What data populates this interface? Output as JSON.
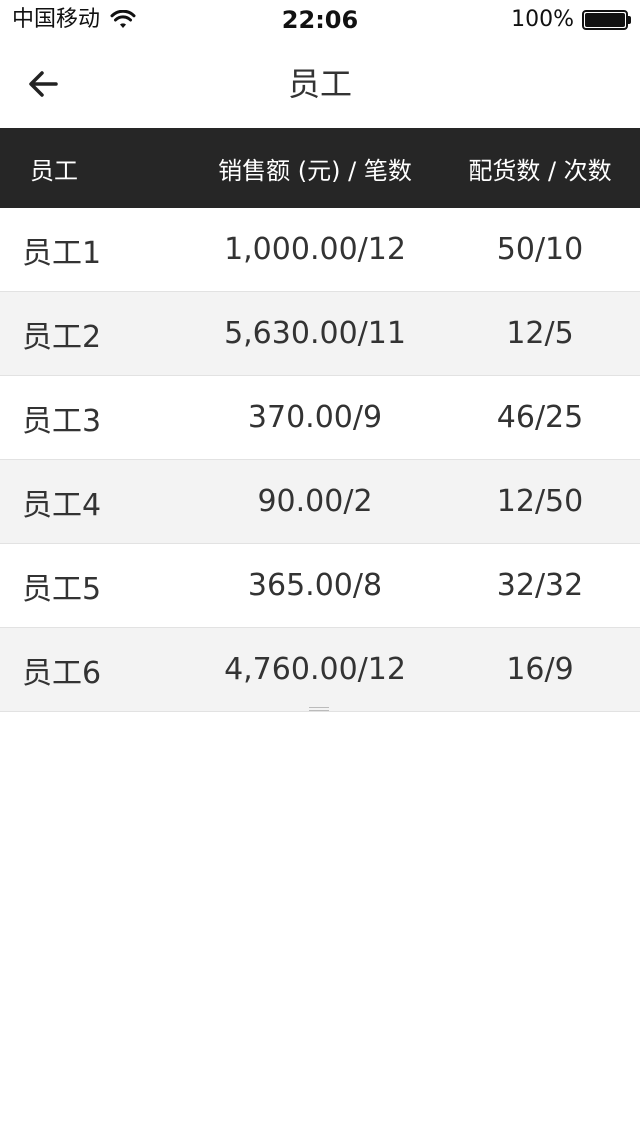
{
  "status_bar": {
    "carrier": "中国移动",
    "time": "22:06",
    "battery": "100%",
    "battery_level": 1.0
  },
  "nav": {
    "title": "员工",
    "back_icon": "arrow-left-icon"
  },
  "table": {
    "headers": {
      "employee": "员工",
      "sales": "销售额 (元) / 笔数",
      "delivery": "配货数 / 次数"
    },
    "rows": [
      {
        "name": "员工1",
        "sales": "1,000.00/12",
        "delivery": "50/10"
      },
      {
        "name": "员工2",
        "sales": "5,630.00/11",
        "delivery": "12/5"
      },
      {
        "name": "员工3",
        "sales": "370.00/9",
        "delivery": "46/25"
      },
      {
        "name": "员工4",
        "sales": "90.00/2",
        "delivery": "12/50"
      },
      {
        "name": "员工5",
        "sales": "365.00/8",
        "delivery": "32/32"
      },
      {
        "name": "员工6",
        "sales": "4,760.00/12",
        "delivery": "16/9"
      }
    ]
  },
  "colors": {
    "header_bg": "#262626",
    "row_alt_bg": "#f3f3f3",
    "text": "#333333"
  }
}
